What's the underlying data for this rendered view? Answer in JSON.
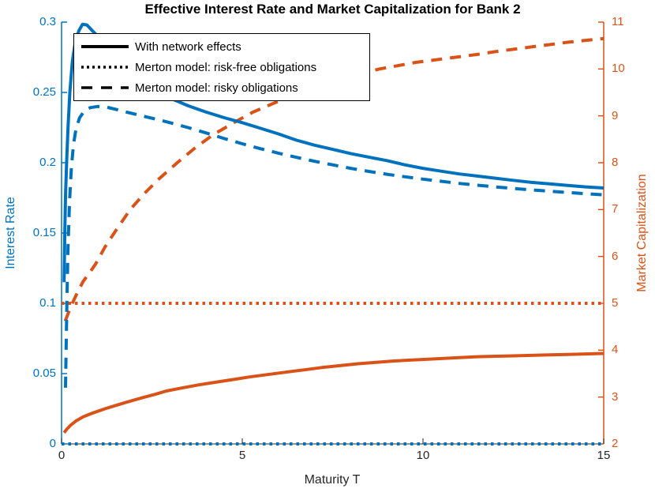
{
  "chart_data": {
    "type": "line",
    "title": "Effective Interest Rate and Market Capitalization for Bank 2",
    "x": {
      "label": "Maturity T",
      "range": [
        0,
        15
      ],
      "ticks": [
        0,
        5,
        10,
        15
      ],
      "tick_labels": [
        "0",
        "5",
        "10",
        "15"
      ],
      "color": "#262626"
    },
    "y_left": {
      "label": "Interest Rate",
      "range": [
        0,
        0.3
      ],
      "ticks": [
        0,
        0.05,
        0.1,
        0.15,
        0.2,
        0.25,
        0.3
      ],
      "tick_labels": [
        "0",
        "0.05",
        "0.1",
        "0.15",
        "0.2",
        "0.25",
        "0.3"
      ],
      "color": "#0072BD"
    },
    "y_right": {
      "label": "Market Capitalization",
      "range": [
        2,
        11
      ],
      "ticks": [
        2,
        3,
        4,
        5,
        6,
        7,
        8,
        9,
        10,
        11
      ],
      "tick_labels": [
        "2",
        "3",
        "4",
        "5",
        "6",
        "7",
        "8",
        "9",
        "10",
        "11"
      ],
      "color": "#D95319"
    },
    "legend": {
      "position": "top-left",
      "items": [
        {
          "style": "solid",
          "label": "With network effects"
        },
        {
          "style": "dotted",
          "label": "Merton model: risk-free obligations"
        },
        {
          "style": "dashed",
          "label": "Merton model: risky obligations"
        }
      ]
    },
    "grid": false,
    "series": [
      {
        "id": "mc-merton-riskfree",
        "name": "Market Capitalization - Merton model: risk-free obligations",
        "axis": "right",
        "style": "dotted",
        "color": "#D95319",
        "points": [
          [
            0,
            5
          ],
          [
            15,
            5
          ]
        ]
      },
      {
        "id": "mc-merton-risky",
        "name": "Market Capitalization - Merton model: risky obligations",
        "axis": "right",
        "style": "dashed",
        "color": "#D95319",
        "points": [
          [
            0.1,
            4.62
          ],
          [
            0.2,
            4.82
          ],
          [
            0.3,
            5.0
          ],
          [
            0.45,
            5.25
          ],
          [
            0.6,
            5.47
          ],
          [
            0.8,
            5.68
          ],
          [
            0.95,
            5.85
          ],
          [
            1.2,
            6.2
          ],
          [
            1.5,
            6.55
          ],
          [
            1.9,
            7.0
          ],
          [
            2.3,
            7.35
          ],
          [
            2.7,
            7.66
          ],
          [
            3.2,
            8.0
          ],
          [
            3.7,
            8.32
          ],
          [
            4.2,
            8.6
          ],
          [
            4.8,
            8.87
          ],
          [
            5.3,
            9.08
          ],
          [
            5.9,
            9.28
          ],
          [
            6.3,
            9.4
          ],
          [
            7.0,
            9.58
          ],
          [
            7.8,
            9.8
          ],
          [
            8.8,
            10.0
          ],
          [
            9.8,
            10.14
          ],
          [
            10.9,
            10.25
          ],
          [
            11.5,
            10.31
          ],
          [
            12.0,
            10.37
          ],
          [
            12.5,
            10.42
          ],
          [
            13.0,
            10.47
          ],
          [
            13.5,
            10.52
          ],
          [
            14.0,
            10.57
          ],
          [
            14.5,
            10.61
          ],
          [
            15.0,
            10.65
          ]
        ]
      },
      {
        "id": "mc-network",
        "name": "Market Capitalization - With network effects",
        "axis": "right",
        "style": "solid",
        "color": "#D95319",
        "points": [
          [
            0.07,
            2.24
          ],
          [
            0.15,
            2.32
          ],
          [
            0.25,
            2.4
          ],
          [
            0.4,
            2.49
          ],
          [
            0.6,
            2.58
          ],
          [
            0.87,
            2.66
          ],
          [
            1.2,
            2.75
          ],
          [
            1.5,
            2.82
          ],
          [
            1.75,
            2.88
          ],
          [
            2.2,
            2.98
          ],
          [
            2.6,
            3.06
          ],
          [
            2.9,
            3.13
          ],
          [
            3.3,
            3.19
          ],
          [
            3.8,
            3.26
          ],
          [
            4.37,
            3.33
          ],
          [
            4.8,
            3.38
          ],
          [
            5.2,
            3.43
          ],
          [
            5.7,
            3.48
          ],
          [
            6.2,
            3.53
          ],
          [
            6.7,
            3.58
          ],
          [
            7.2,
            3.63
          ],
          [
            7.7,
            3.67
          ],
          [
            8.2,
            3.71
          ],
          [
            8.7,
            3.74
          ],
          [
            9.2,
            3.77
          ],
          [
            9.7,
            3.79
          ],
          [
            10.2,
            3.81
          ],
          [
            11.0,
            3.84
          ],
          [
            11.5,
            3.86
          ],
          [
            12.0,
            3.87
          ],
          [
            12.5,
            3.88
          ],
          [
            13.0,
            3.89
          ],
          [
            13.5,
            3.9
          ],
          [
            14.0,
            3.91
          ],
          [
            14.5,
            3.92
          ],
          [
            15.0,
            3.93
          ]
        ]
      },
      {
        "id": "ir-merton-riskfree",
        "name": "Interest Rate - Merton model: risk-free obligations",
        "axis": "left",
        "style": "dotted",
        "color": "#0072BD",
        "points": [
          [
            0,
            0
          ],
          [
            15,
            0
          ]
        ]
      },
      {
        "id": "ir-merton-risky",
        "name": "Interest Rate - Merton model: risky obligations",
        "axis": "left",
        "style": "dashed",
        "color": "#0072BD",
        "points": [
          [
            0.11,
            0.04
          ],
          [
            0.13,
            0.075
          ],
          [
            0.15,
            0.105
          ],
          [
            0.18,
            0.14
          ],
          [
            0.22,
            0.172
          ],
          [
            0.27,
            0.196
          ],
          [
            0.33,
            0.213
          ],
          [
            0.4,
            0.224
          ],
          [
            0.5,
            0.232
          ],
          [
            0.65,
            0.2375
          ],
          [
            0.8,
            0.2392
          ],
          [
            1.0,
            0.24
          ],
          [
            1.25,
            0.2395
          ],
          [
            1.5,
            0.238
          ],
          [
            1.8,
            0.236
          ],
          [
            2.2,
            0.2335
          ],
          [
            2.6,
            0.231
          ],
          [
            3.0,
            0.2285
          ],
          [
            3.5,
            0.225
          ],
          [
            4.0,
            0.2212
          ],
          [
            4.5,
            0.2172
          ],
          [
            5.0,
            0.2135
          ],
          [
            5.5,
            0.21
          ],
          [
            6.0,
            0.2068
          ],
          [
            6.5,
            0.2038
          ],
          [
            7.0,
            0.201
          ],
          [
            7.5,
            0.1985
          ],
          [
            8.0,
            0.196
          ],
          [
            8.5,
            0.1938
          ],
          [
            9.0,
            0.1918
          ],
          [
            9.5,
            0.19
          ],
          [
            10.0,
            0.1883
          ],
          [
            10.5,
            0.1868
          ],
          [
            11.0,
            0.1853
          ],
          [
            11.5,
            0.184
          ],
          [
            12.0,
            0.1828
          ],
          [
            12.5,
            0.1817
          ],
          [
            13.0,
            0.1807
          ],
          [
            13.5,
            0.1797
          ],
          [
            14.0,
            0.1788
          ],
          [
            14.5,
            0.178
          ],
          [
            15.0,
            0.1772
          ]
        ]
      },
      {
        "id": "ir-network",
        "name": "Interest Rate - With network effects",
        "axis": "left",
        "style": "solid",
        "color": "#0072BD",
        "points": [
          [
            0.07,
            0.115
          ],
          [
            0.09,
            0.15
          ],
          [
            0.11,
            0.176
          ],
          [
            0.14,
            0.2
          ],
          [
            0.18,
            0.225
          ],
          [
            0.23,
            0.25
          ],
          [
            0.3,
            0.272
          ],
          [
            0.38,
            0.286
          ],
          [
            0.48,
            0.294
          ],
          [
            0.58,
            0.2985
          ],
          [
            0.7,
            0.298
          ],
          [
            0.85,
            0.294
          ],
          [
            1.0,
            0.29
          ],
          [
            1.2,
            0.284
          ],
          [
            1.45,
            0.2765
          ],
          [
            1.7,
            0.2695
          ],
          [
            2.0,
            0.262
          ],
          [
            2.5,
            0.253
          ],
          [
            3.0,
            0.246
          ],
          [
            3.5,
            0.2405
          ],
          [
            4.0,
            0.236
          ],
          [
            4.5,
            0.232
          ],
          [
            5.0,
            0.2285
          ],
          [
            5.5,
            0.2245
          ],
          [
            6.0,
            0.2205
          ],
          [
            6.5,
            0.216
          ],
          [
            7.0,
            0.2125
          ],
          [
            7.5,
            0.2095
          ],
          [
            8.0,
            0.2065
          ],
          [
            8.5,
            0.204
          ],
          [
            9.0,
            0.2015
          ],
          [
            9.5,
            0.1985
          ],
          [
            10.0,
            0.196
          ],
          [
            10.5,
            0.194
          ],
          [
            11.0,
            0.192
          ],
          [
            11.5,
            0.1905
          ],
          [
            12.0,
            0.189
          ],
          [
            12.5,
            0.1875
          ],
          [
            13.0,
            0.186
          ],
          [
            13.5,
            0.185
          ],
          [
            14.0,
            0.1838
          ],
          [
            14.5,
            0.1828
          ],
          [
            15.0,
            0.182
          ]
        ]
      }
    ]
  }
}
